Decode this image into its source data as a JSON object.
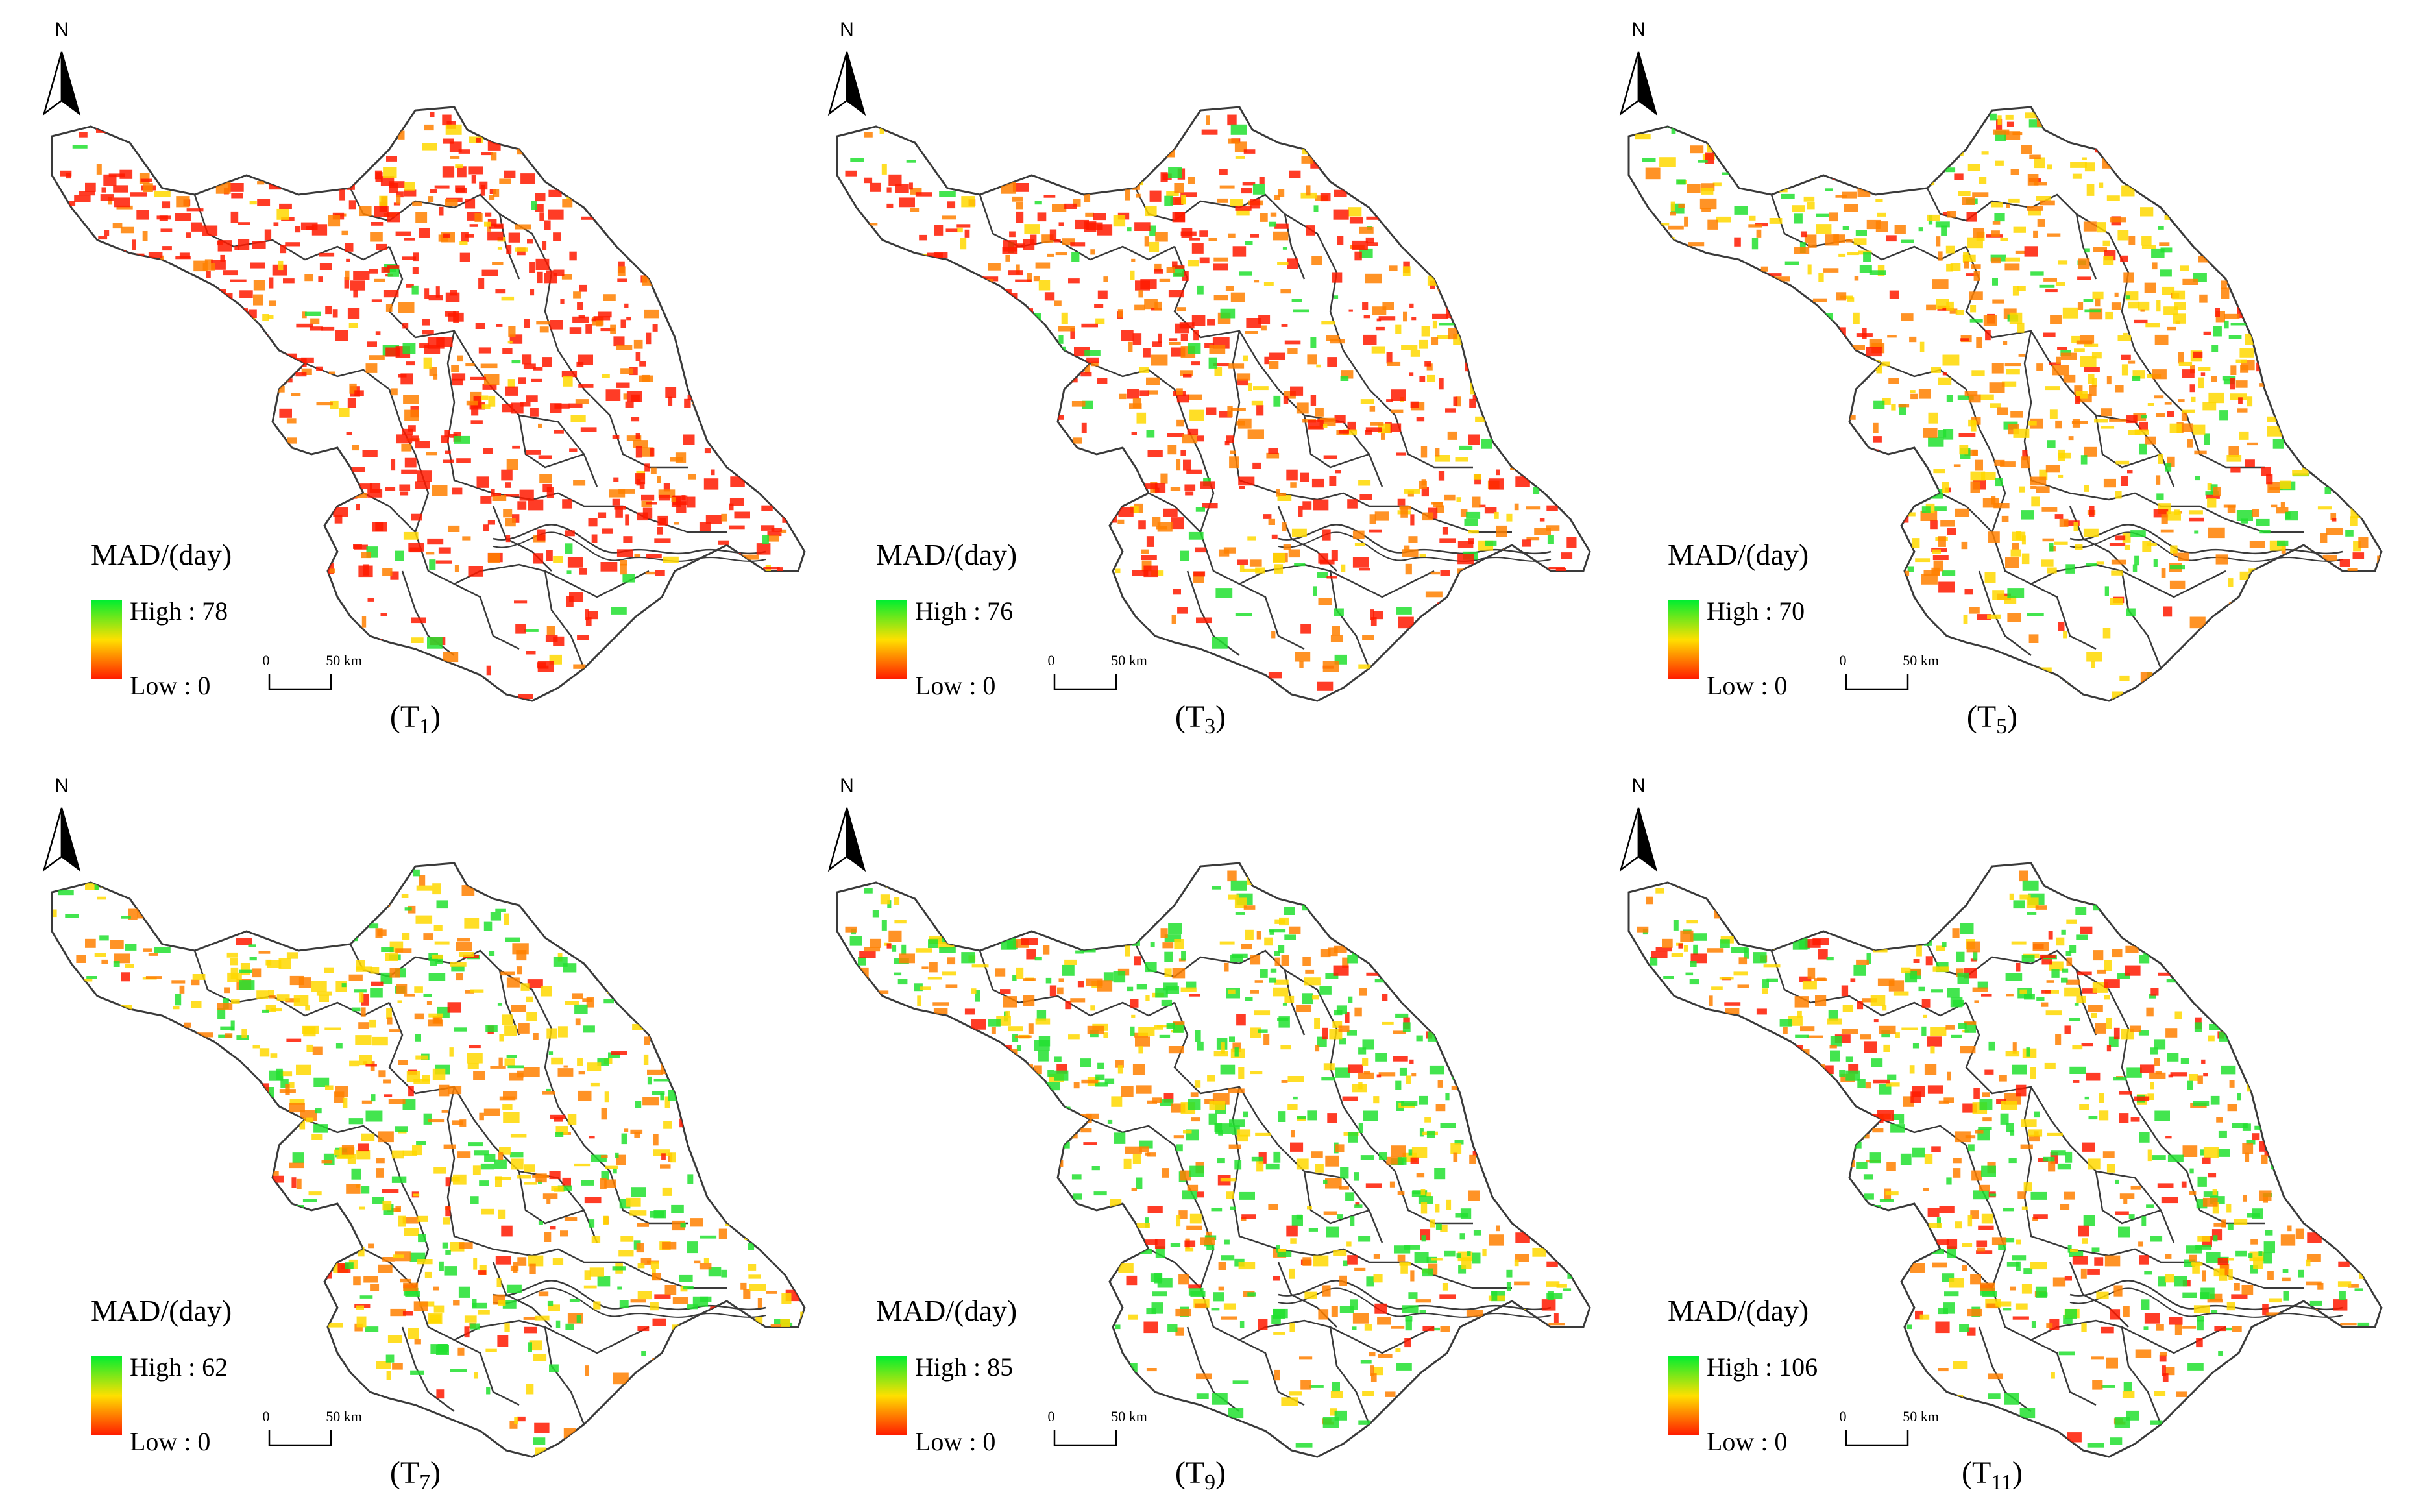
{
  "panels": [
    {
      "id": "T1",
      "label_main": "(T",
      "label_sub": "1",
      "label_close": ")",
      "legend_title": "MAD/(day)",
      "high_label": "High : 78",
      "low_label": "Low : 0",
      "high_value": 78,
      "low_value": 0,
      "mix": {
        "red": 0.7,
        "orange": 0.2,
        "yellow": 0.06,
        "green": 0.04
      }
    },
    {
      "id": "T3",
      "label_main": "(T",
      "label_sub": "3",
      "label_close": ")",
      "legend_title": "MAD/(day)",
      "high_label": "High : 76",
      "low_label": "Low : 0",
      "high_value": 76,
      "low_value": 0,
      "mix": {
        "red": 0.45,
        "orange": 0.3,
        "yellow": 0.15,
        "green": 0.1
      }
    },
    {
      "id": "T5",
      "label_main": "(T",
      "label_sub": "5",
      "label_close": ")",
      "legend_title": "MAD/(day)",
      "high_label": "High : 70",
      "low_label": "Low : 0",
      "high_value": 70,
      "low_value": 0,
      "mix": {
        "red": 0.12,
        "orange": 0.38,
        "yellow": 0.35,
        "green": 0.15
      }
    },
    {
      "id": "T7",
      "label_main": "(T",
      "label_sub": "7",
      "label_close": ")",
      "legend_title": "MAD/(day)",
      "high_label": "High : 62",
      "low_label": "Low : 0",
      "high_value": 62,
      "low_value": 0,
      "mix": {
        "red": 0.06,
        "orange": 0.3,
        "yellow": 0.34,
        "green": 0.3
      }
    },
    {
      "id": "T9",
      "label_main": "(T",
      "label_sub": "9",
      "label_close": ")",
      "legend_title": "MAD/(day)",
      "high_label": "High : 85",
      "low_label": "Low : 0",
      "high_value": 85,
      "low_value": 0,
      "mix": {
        "red": 0.1,
        "orange": 0.28,
        "yellow": 0.24,
        "green": 0.38
      }
    },
    {
      "id": "T11",
      "label_main": "(T",
      "label_sub": "11",
      "label_close": ")",
      "legend_title": "MAD/(day)",
      "high_label": "High : 106",
      "low_label": "Low : 0",
      "high_value": 106,
      "low_value": 0,
      "mix": {
        "red": 0.2,
        "orange": 0.25,
        "yellow": 0.2,
        "green": 0.35
      }
    }
  ],
  "north_label": "N",
  "scale_zero": "0",
  "scale_fifty": "50 km",
  "colors": {
    "low": "#ff1a00",
    "mid": "#ffe000",
    "high": "#00ee30",
    "orange": "#ff8000",
    "boundary": "#3a3a3a"
  }
}
